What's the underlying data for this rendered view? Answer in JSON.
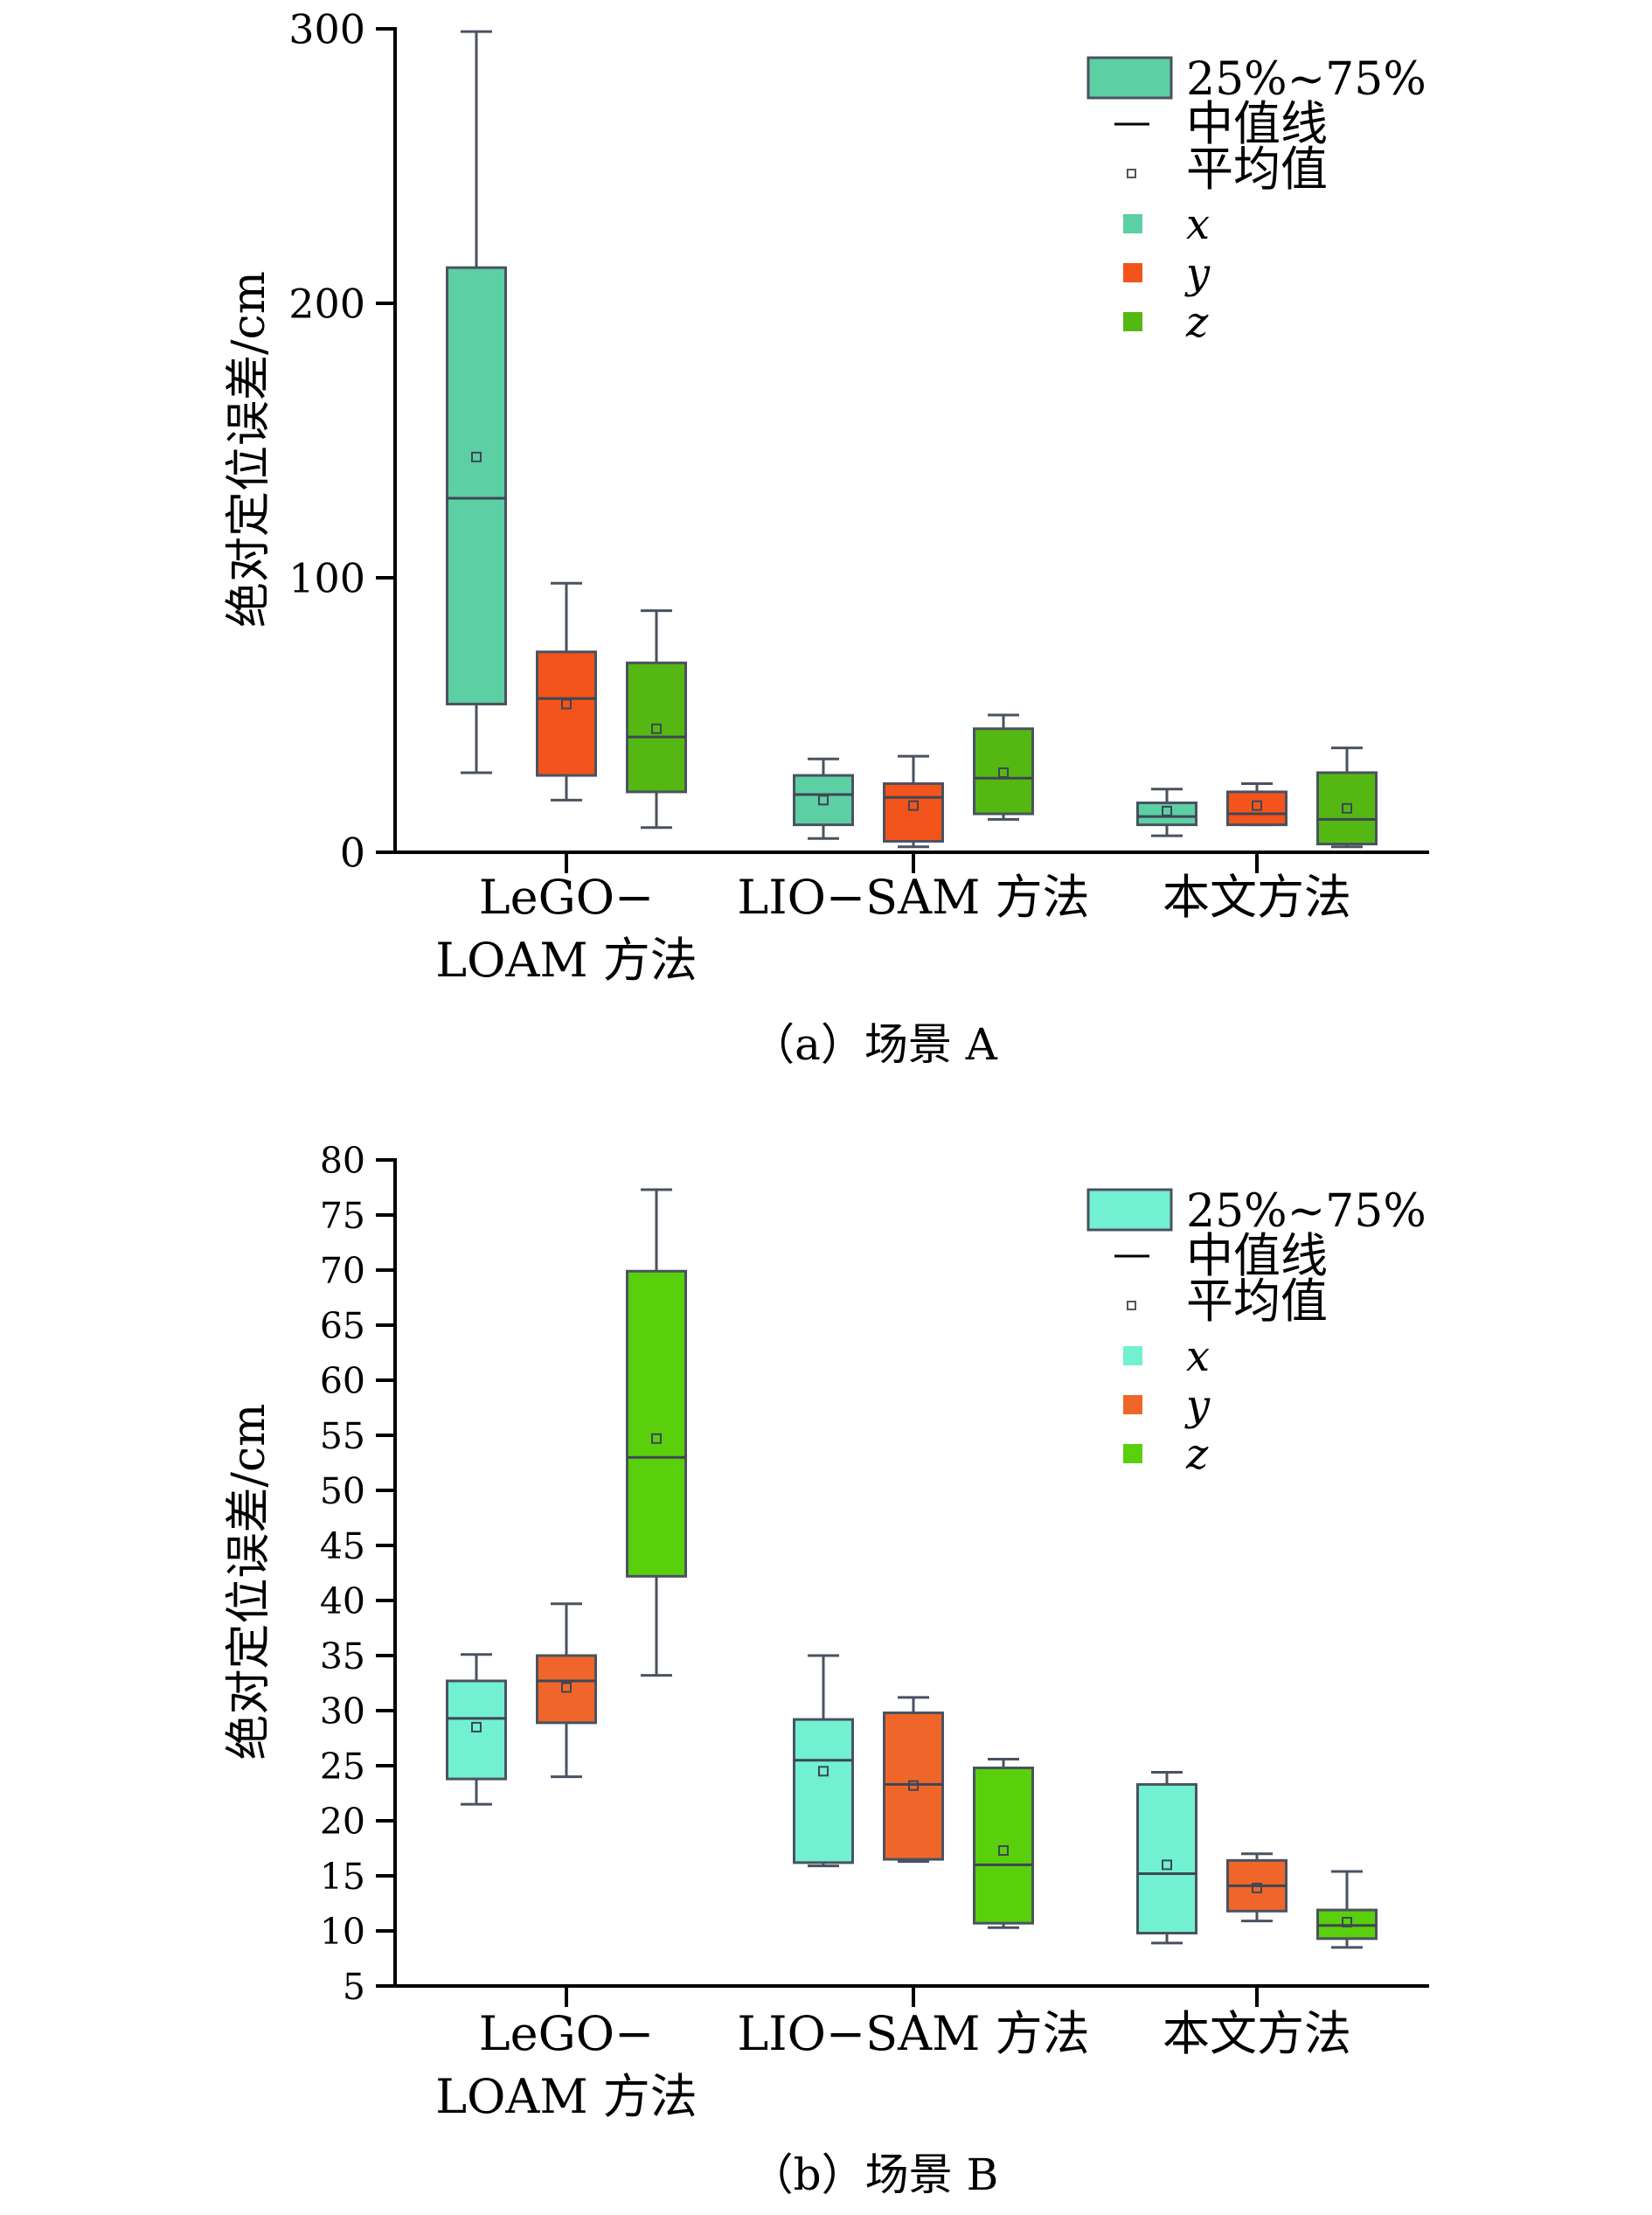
{
  "chart_data": [
    {
      "id": "a",
      "type": "box",
      "caption": "（a）场景 A",
      "ylabel": "绝对定位误差/cm",
      "ylim": [
        0,
        300
      ],
      "yticks": [
        0,
        100,
        200,
        300
      ],
      "categories": [
        [
          "LeGO−",
          "LOAM 方法"
        ],
        [
          "LIO−SAM 方法"
        ],
        [
          "本文方法"
        ]
      ],
      "series_colors": {
        "x": "#5ccfa4",
        "y": "#f2541c",
        "z": "#55b812"
      },
      "legend": {
        "range_label": "25%~75%",
        "median_label": "中值线",
        "mean_label": "平均值",
        "series": [
          "x",
          "y",
          "z"
        ],
        "position": "top-right"
      },
      "boxes": [
        {
          "category": 0,
          "series": "x",
          "min": 29,
          "q1": 54,
          "median": 129,
          "q3": 213,
          "max": 299,
          "mean": 144
        },
        {
          "category": 0,
          "series": "y",
          "min": 19,
          "q1": 28,
          "median": 56,
          "q3": 73,
          "max": 98,
          "mean": 54
        },
        {
          "category": 0,
          "series": "z",
          "min": 9,
          "q1": 22,
          "median": 42,
          "q3": 69,
          "max": 88,
          "mean": 45
        },
        {
          "category": 1,
          "series": "x",
          "min": 5,
          "q1": 10,
          "median": 21,
          "q3": 28,
          "max": 34,
          "mean": 19
        },
        {
          "category": 1,
          "series": "y",
          "min": 2,
          "q1": 4,
          "median": 20,
          "q3": 25,
          "max": 35,
          "mean": 17
        },
        {
          "category": 1,
          "series": "z",
          "min": 12,
          "q1": 14,
          "median": 27,
          "q3": 45,
          "max": 50,
          "mean": 29
        },
        {
          "category": 2,
          "series": "x",
          "min": 6,
          "q1": 10,
          "median": 13,
          "q3": 18,
          "max": 23,
          "mean": 15
        },
        {
          "category": 2,
          "series": "y",
          "min": 10,
          "q1": 10,
          "median": 14,
          "q3": 22,
          "max": 25,
          "mean": 17
        },
        {
          "category": 2,
          "series": "z",
          "min": 2,
          "q1": 3,
          "median": 12,
          "q3": 29,
          "max": 38,
          "mean": 16
        }
      ]
    },
    {
      "id": "b",
      "type": "box",
      "caption": "（b）场景 B",
      "ylabel": "绝对定位误差/cm",
      "ylim": [
        5,
        80
      ],
      "yticks": [
        5,
        10,
        15,
        20,
        25,
        30,
        35,
        40,
        45,
        50,
        55,
        60,
        65,
        70,
        75,
        80
      ],
      "categories": [
        [
          "LeGO−",
          "LOAM 方法"
        ],
        [
          "LIO−SAM 方法"
        ],
        [
          "本文方法"
        ]
      ],
      "series_colors": {
        "x": "#72f0d2",
        "y": "#f0662a",
        "z": "#5ad00c"
      },
      "legend": {
        "range_label": "25%~75%",
        "median_label": "中值线",
        "mean_label": "平均值",
        "series": [
          "x",
          "y",
          "z"
        ],
        "position": "top-right"
      },
      "boxes": [
        {
          "category": 0,
          "series": "x",
          "min": 21.5,
          "q1": 23.8,
          "median": 29.3,
          "q3": 32.7,
          "max": 35.1,
          "mean": 28.5
        },
        {
          "category": 0,
          "series": "y",
          "min": 24,
          "q1": 28.9,
          "median": 32.7,
          "q3": 35.0,
          "max": 39.7,
          "mean": 32.1
        },
        {
          "category": 0,
          "series": "z",
          "min": 33.2,
          "q1": 42.2,
          "median": 53,
          "q3": 69.9,
          "max": 77.3,
          "mean": 54.7
        },
        {
          "category": 1,
          "series": "x",
          "min": 15.9,
          "q1": 16.2,
          "median": 25.5,
          "q3": 29.2,
          "max": 35,
          "mean": 24.5
        },
        {
          "category": 1,
          "series": "y",
          "min": 16.3,
          "q1": 16.5,
          "median": 23.3,
          "q3": 29.8,
          "max": 31.2,
          "mean": 23.2
        },
        {
          "category": 1,
          "series": "z",
          "min": 10.3,
          "q1": 10.7,
          "median": 16.0,
          "q3": 24.8,
          "max": 25.6,
          "mean": 17.3
        },
        {
          "category": 2,
          "series": "x",
          "min": 8.9,
          "q1": 9.8,
          "median": 15.2,
          "q3": 23.3,
          "max": 24.4,
          "mean": 16.0
        },
        {
          "category": 2,
          "series": "y",
          "min": 10.9,
          "q1": 11.8,
          "median": 14.1,
          "q3": 16.4,
          "max": 17.0,
          "mean": 13.9
        },
        {
          "category": 2,
          "series": "z",
          "min": 8.5,
          "q1": 9.3,
          "median": 10.5,
          "q3": 11.9,
          "max": 15.4,
          "mean": 10.8
        }
      ]
    }
  ]
}
